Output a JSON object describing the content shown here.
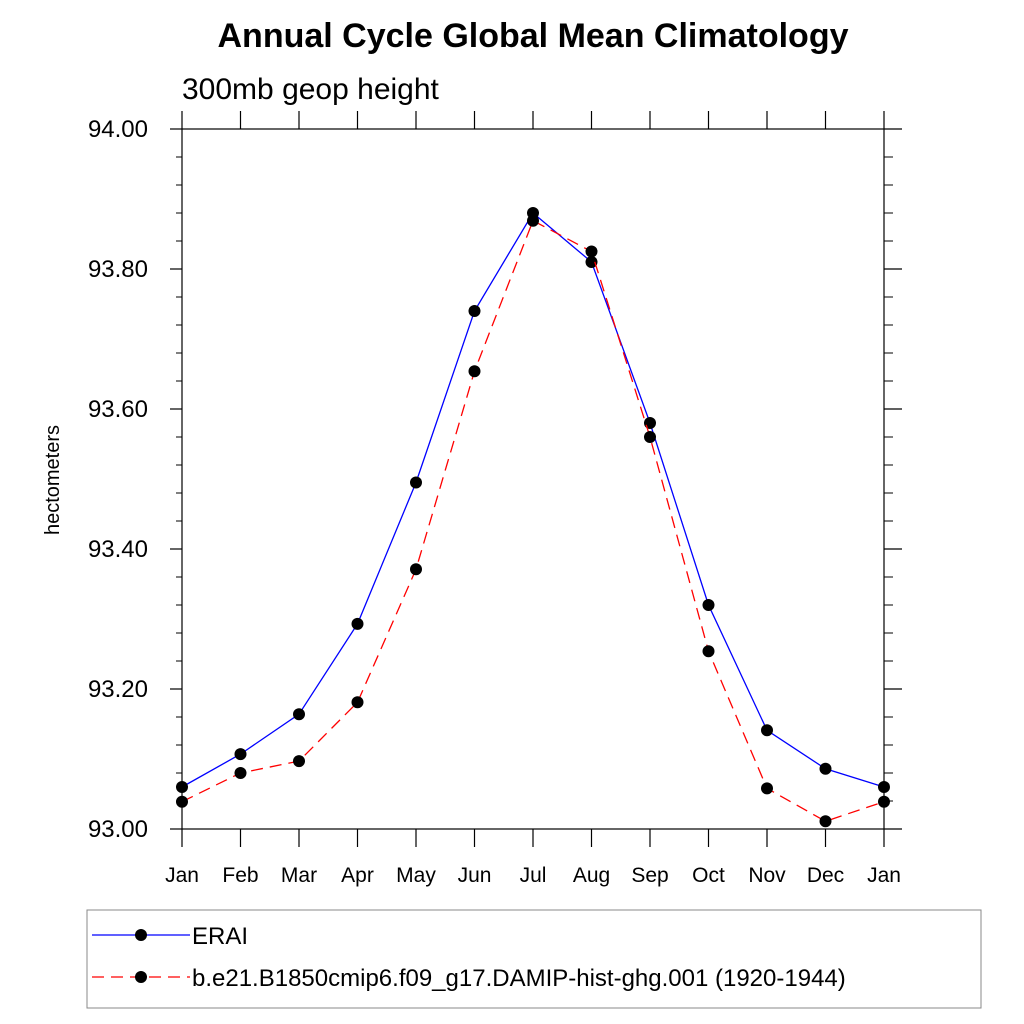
{
  "chart_data": {
    "type": "line",
    "title": "Annual Cycle Global Mean Climatology",
    "subtitle": "300mb geop height",
    "xlabel": "",
    "ylabel": "hectometers",
    "categories": [
      "Jan",
      "Feb",
      "Mar",
      "Apr",
      "May",
      "Jun",
      "Jul",
      "Aug",
      "Sep",
      "Oct",
      "Nov",
      "Dec",
      "Jan"
    ],
    "ylim": [
      93.0,
      94.0
    ],
    "yticks": [
      "93.00",
      "93.20",
      "93.40",
      "93.60",
      "93.80",
      "94.00"
    ],
    "ytick_values": [
      93.0,
      93.2,
      93.4,
      93.6,
      93.8,
      94.0
    ],
    "grid": false,
    "legend_position": "bottom",
    "series": [
      {
        "name": "ERAI",
        "color": "#0000ff",
        "line_style": "solid",
        "marker": "filled-circle",
        "values": [
          93.06,
          93.107,
          93.164,
          93.293,
          93.495,
          93.74,
          93.88,
          93.81,
          93.58,
          93.32,
          93.141,
          93.086,
          93.06
        ]
      },
      {
        "name": "b.e21.B1850cmip6.f09_g17.DAMIP-hist-ghg.001 (1920-1944)",
        "color": "#ff0000",
        "line_style": "dashed",
        "marker": "filled-circle",
        "values": [
          93.039,
          93.08,
          93.097,
          93.181,
          93.371,
          93.654,
          93.869,
          93.825,
          93.56,
          93.254,
          93.058,
          93.011,
          93.039
        ]
      }
    ]
  }
}
